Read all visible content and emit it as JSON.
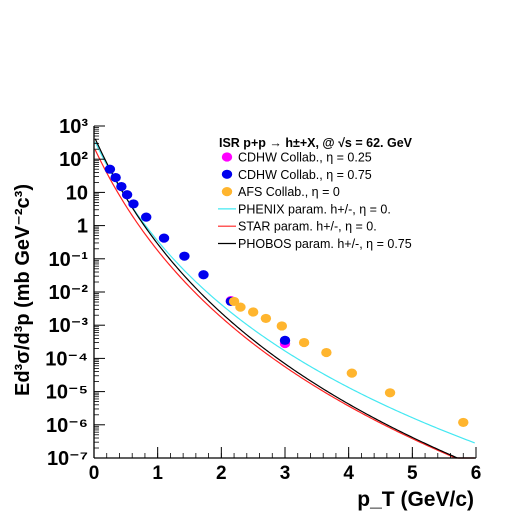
{
  "chart_data": {
    "type": "scatter",
    "title": "",
    "xlabel": "p_T (GeV/c)",
    "ylabel": "Ed³σ/d³p (mb GeV⁻²c³)",
    "xlim": [
      0,
      6
    ],
    "ylim_log10": [
      -7,
      3
    ],
    "yscale": "log",
    "grid": false,
    "legend_position": "top-right",
    "x_ticks": [
      0,
      1,
      2,
      3,
      4,
      5,
      6
    ],
    "y_ticks": [
      {
        "exp": 3,
        "label": "10³"
      },
      {
        "exp": 2,
        "label": "10²"
      },
      {
        "exp": 1,
        "label": "10"
      },
      {
        "exp": 0,
        "label": "1"
      },
      {
        "exp": -1,
        "label": "10⁻¹"
      },
      {
        "exp": -2,
        "label": "10⁻²"
      },
      {
        "exp": -3,
        "label": "10⁻³"
      },
      {
        "exp": -4,
        "label": "10⁻⁴"
      },
      {
        "exp": -5,
        "label": "10⁻⁵"
      },
      {
        "exp": -6,
        "label": "10⁻⁶"
      },
      {
        "exp": -7,
        "label": "10⁻⁷"
      }
    ],
    "legend_header": "ISR p+p → h±+X, @ √s = 62. GeV",
    "series": [
      {
        "name": "CDHW Collab., η = 0.25",
        "kind": "points",
        "color": "#ff00ff",
        "points": [
          [
            2.15,
            0.0055
          ],
          [
            3.0,
            0.00028
          ]
        ]
      },
      {
        "name": "CDHW Collab., η = 0.75",
        "kind": "points",
        "color": "#0000ee",
        "points": [
          [
            0.25,
            50
          ],
          [
            0.34,
            28
          ],
          [
            0.43,
            15
          ],
          [
            0.52,
            8.5
          ],
          [
            0.62,
            4.5
          ],
          [
            0.82,
            1.8
          ],
          [
            1.1,
            0.42
          ],
          [
            1.42,
            0.12
          ],
          [
            1.72,
            0.033
          ],
          [
            2.15,
            0.0052
          ],
          [
            3.0,
            0.00035
          ]
        ]
      },
      {
        "name": "AFS Collab., η = 0",
        "kind": "points",
        "color": "#ffb52e",
        "points": [
          [
            2.2,
            0.0052
          ],
          [
            2.3,
            0.0035
          ],
          [
            2.5,
            0.0025
          ],
          [
            2.7,
            0.0016
          ],
          [
            2.95,
            0.00095
          ],
          [
            3.3,
            0.0003
          ],
          [
            3.65,
            0.00015
          ],
          [
            4.05,
            3.6e-05
          ],
          [
            4.65,
            9.2e-06
          ],
          [
            5.8,
            1.18e-06
          ]
        ]
      },
      {
        "name": "PHENIX param. h+/-, η = 0.",
        "kind": "line",
        "color": "#44e8f2",
        "params": {
          "A": 400,
          "p0": 1.25,
          "n": 12.0
        }
      },
      {
        "name": "STAR param. h+/-, η = 0.",
        "kind": "line",
        "color": "#ff2222",
        "params": {
          "A": 230,
          "p0": 1.4,
          "n": 13.3
        }
      },
      {
        "name": "PHOBOS param. h+/-, η = 0.75",
        "kind": "line",
        "color": "#000000",
        "params": {
          "A": 500,
          "p0": 1.35,
          "n": 13.5
        }
      }
    ]
  }
}
